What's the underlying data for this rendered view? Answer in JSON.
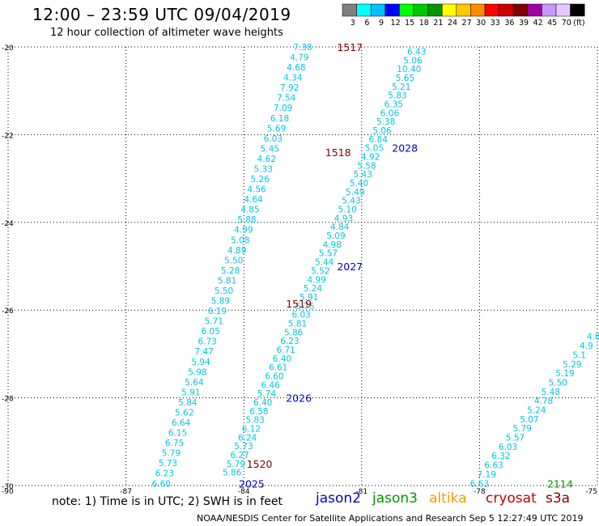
{
  "header": {
    "title": "12:00 – 23:59 UTC 09/04/2019",
    "subtitle": "12 hour collection of altimeter wave heights"
  },
  "color_scale": {
    "labels": [
      "3",
      "6",
      "9",
      "12",
      "15",
      "18",
      "21",
      "24",
      "27",
      "30",
      "33",
      "36",
      "39",
      "42",
      "45",
      "70",
      "(ft)"
    ],
    "colors": [
      "#808080",
      "#00ffff",
      "#00bfff",
      "#0000ff",
      "#00ff00",
      "#00c800",
      "#009600",
      "#ffff00",
      "#ffc800",
      "#ff8c00",
      "#ff0000",
      "#c80000",
      "#800000",
      "#a000a0",
      "#c896ff",
      "#e6c8ff",
      "#000000"
    ]
  },
  "footer": {
    "note": "note:  1) Time is in UTC;  2) SWH is in feet",
    "satellites": [
      {
        "name": "jason2",
        "color": "#0000c8"
      },
      {
        "name": "jason3",
        "color": "#009600"
      },
      {
        "name": "altika",
        "color": "#ff9600"
      },
      {
        "name": "cryosat",
        "color": "#c80000"
      },
      {
        "name": "s3a",
        "color": "#800000"
      }
    ],
    "credit": "NOAA/NESDIS Center for Satellite Applications and Research     Sep  5 12:27:49 UTC 2019"
  },
  "chart_data": {
    "type": "scatter",
    "xlim": [
      -90,
      -75
    ],
    "ylim": [
      -30,
      -20
    ],
    "x_ticks": [
      -90,
      -87,
      -84,
      -81,
      -78,
      -75
    ],
    "y_ticks": [
      -20,
      -22,
      -24,
      -26,
      -28,
      -30
    ],
    "x_tick_labels": [
      "-90",
      "-87",
      "-84",
      "-81",
      "-78",
      "-75"
    ],
    "y_tick_labels": [
      "-20",
      "-22",
      "-24",
      "-26",
      "-28",
      "-30"
    ],
    "grid": true,
    "value_color": "#00c8e6",
    "tracks": [
      {
        "start": [
          -82.5,
          -20.0
        ],
        "end": [
          -86.1,
          -29.95
        ],
        "values": [
          "7.38",
          "4.79",
          "4.68",
          "4.34",
          "7.92",
          "7.54",
          "7.09",
          "6.18",
          "5.69",
          "6.03",
          "5.45",
          "4.62",
          "5.33",
          "5.26",
          "4.56",
          "4.64",
          "4.85",
          "5.88",
          "4.99",
          "5.08",
          "4.89",
          "5.50",
          "5.28",
          "5.81",
          "5.50",
          "5.89",
          "6.19",
          "5.71",
          "6.05",
          "6.73",
          "7.47",
          "5.94",
          "5.98",
          "5.64",
          "5.91",
          "5.84",
          "5.62",
          "6.64",
          "6.15",
          "6.75",
          "5.79",
          "5.73",
          "6.23",
          "6.60"
        ]
      },
      {
        "start": [
          -79.6,
          -20.1
        ],
        "end": [
          -84.3,
          -29.7
        ],
        "values": [
          "6.43",
          "5.06",
          "10.40",
          "5.65",
          "5.21",
          "5.83",
          "6.35",
          "6.06",
          "5.38",
          "5.06",
          "6.84",
          "5.05",
          "4.92",
          "5.58",
          "5.43",
          "5.40",
          "5.49",
          "5.43",
          "5.10",
          "4.93",
          "4.84",
          "5.09",
          "4.98",
          "5.57",
          "5.44",
          "5.52",
          "4.99",
          "5.24",
          "5.91",
          "5.75",
          "6.03",
          "5.81",
          "5.86",
          "6.23",
          "6.71",
          "6.40",
          "6.61",
          "6.60",
          "6.46",
          "5.74",
          "6.40",
          "6.58",
          "5.83",
          "6.12",
          "6.24",
          "5.73",
          "6.27",
          "5.79",
          "5.86"
        ]
      },
      {
        "start": [
          -75.1,
          -26.6
        ],
        "end": [
          -78.0,
          -29.95
        ],
        "values": [
          "4.8",
          "4.9",
          "5.1",
          "5.29",
          "5.19",
          "5.50",
          "5.48",
          "4.78",
          "5.24",
          "5.07",
          "5.79",
          "5.57",
          "6.03",
          "6.32",
          "6.63",
          "7.19",
          "6.63"
        ]
      }
    ],
    "annotations": [
      {
        "text": "1517",
        "x": -81.3,
        "y": -20.0,
        "color": "#800000"
      },
      {
        "text": "2028",
        "x": -79.9,
        "y": -22.3,
        "color": "#0000c8"
      },
      {
        "text": "1518",
        "x": -81.6,
        "y": -22.4,
        "color": "#800000"
      },
      {
        "text": "2027",
        "x": -81.3,
        "y": -25.0,
        "color": "#0000c8"
      },
      {
        "text": "1519",
        "x": -82.6,
        "y": -25.85,
        "color": "#800000"
      },
      {
        "text": "2026",
        "x": -82.6,
        "y": -28.0,
        "color": "#0000c8"
      },
      {
        "text": "1520",
        "x": -83.6,
        "y": -29.5,
        "color": "#800000"
      },
      {
        "text": "2025",
        "x": -83.8,
        "y": -29.95,
        "color": "#0000c8"
      },
      {
        "text": "2114",
        "x": -75.95,
        "y": -29.95,
        "color": "#009600"
      }
    ]
  }
}
